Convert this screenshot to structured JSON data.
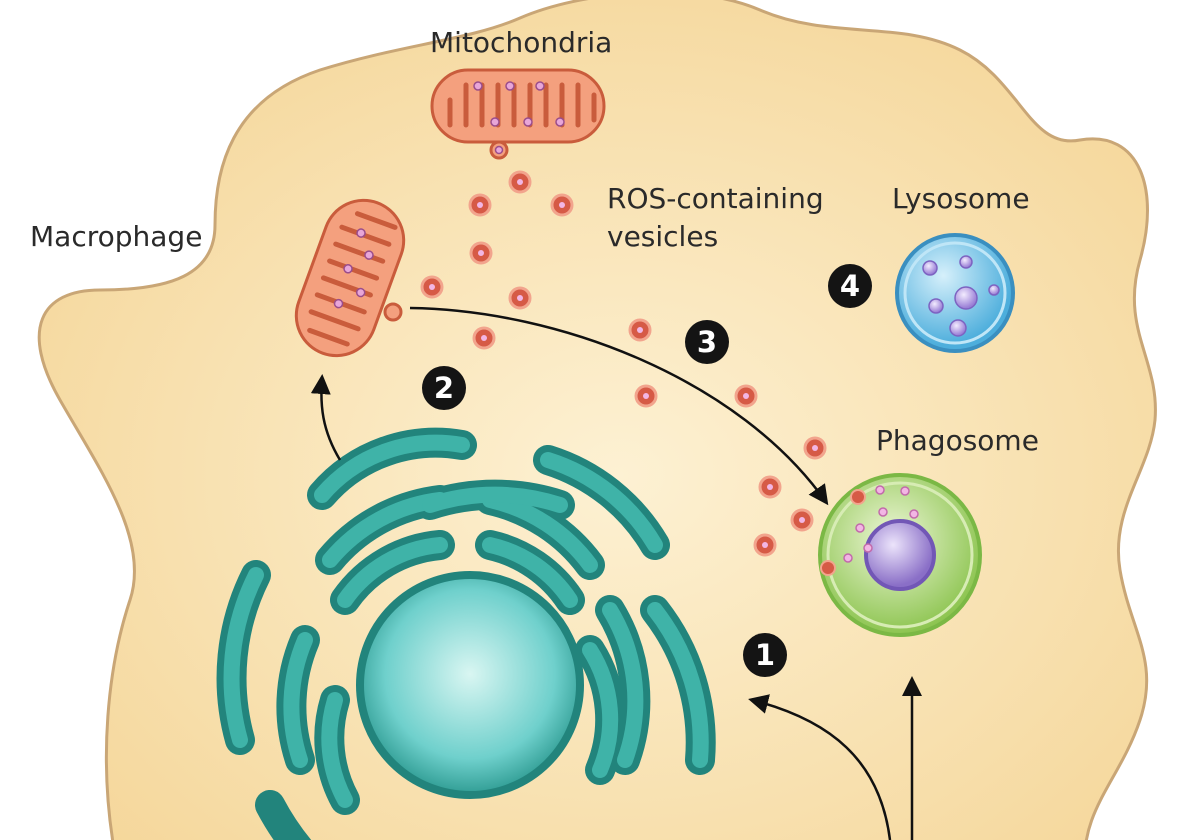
{
  "labels": {
    "macrophage": "Macrophage",
    "mitochondria": "Mitochondria",
    "ros_vesicles": "ROS-containing vesicles",
    "lysosome": "Lysosome",
    "phagosome": "Phagosome"
  },
  "steps": [
    "1",
    "2",
    "3",
    "4"
  ],
  "colors": {
    "cytoplasm": "#f8e0a8",
    "cell_outline": "#c9a676",
    "er": "#2f9c93",
    "nucleus": "#6fd0cc",
    "mitochondria": "#e9805f",
    "ros_vesicle": "#d65a46",
    "phagosome": "#a9d56b",
    "phagosome_core": "#a58fd3",
    "lysosome": "#66bde3",
    "lysosome_particle": "#b49adf",
    "arrow": "#111111",
    "step_badge": "#141414"
  }
}
